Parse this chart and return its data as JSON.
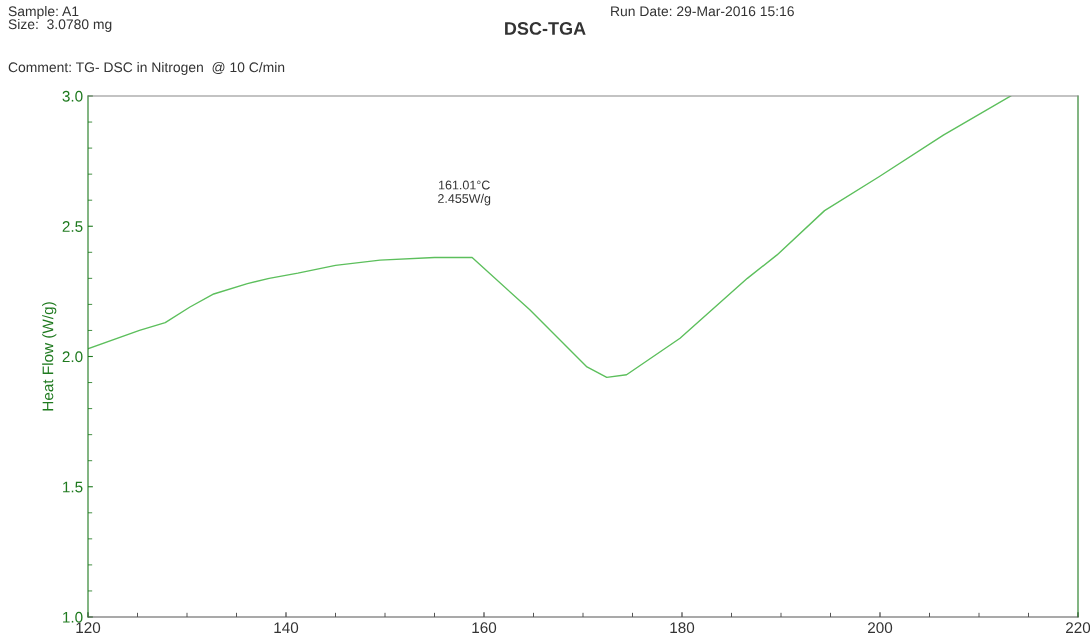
{
  "chart_data": {
    "type": "line",
    "title": "DSC-TGA",
    "ylabel": "Heat Flow (W/g)",
    "x": [
      120,
      125.2,
      127.8,
      130.3,
      132.7,
      136.1,
      138.3,
      141.2,
      145,
      149.5,
      155,
      158.8,
      164.6,
      170.4,
      172.4,
      174.4,
      179.8,
      186.6,
      189.6,
      194.4,
      199.9,
      206.4,
      213.2
    ],
    "series": [
      {
        "color": "#5cbf5c",
        "values": [
          2.03,
          2.1,
          2.13,
          2.19,
          2.24,
          2.28,
          2.3,
          2.32,
          2.35,
          2.37,
          2.38,
          2.38,
          2.18,
          1.96,
          1.92,
          1.93,
          2.07,
          2.3,
          2.39,
          2.56,
          2.69,
          2.85,
          3.0
        ]
      }
    ],
    "xlim": [
      120,
      220
    ],
    "xticks": [
      120,
      140,
      160,
      180,
      200,
      220
    ],
    "ylim": [
      1.0,
      3.0
    ],
    "yticks": [
      {
        "value": 1.0,
        "label": "1.0"
      },
      {
        "value": 1.5,
        "label": "1.5"
      },
      {
        "value": 2.0,
        "label": "2.0"
      },
      {
        "value": 2.5,
        "label": "2.5"
      },
      {
        "value": 3.0,
        "label": "3.0"
      }
    ],
    "grid": false,
    "legend": false,
    "marker": "none",
    "line_style": "solid",
    "annotations": [
      "161.01°C\n2.455W/g",
      "Sample: A1\nSize:  3.0780 mg",
      "Comment: TG- DSC in Nitrogen  @ 10 C/min",
      "Run Date: 29-Mar-2016 15:16"
    ]
  }
}
